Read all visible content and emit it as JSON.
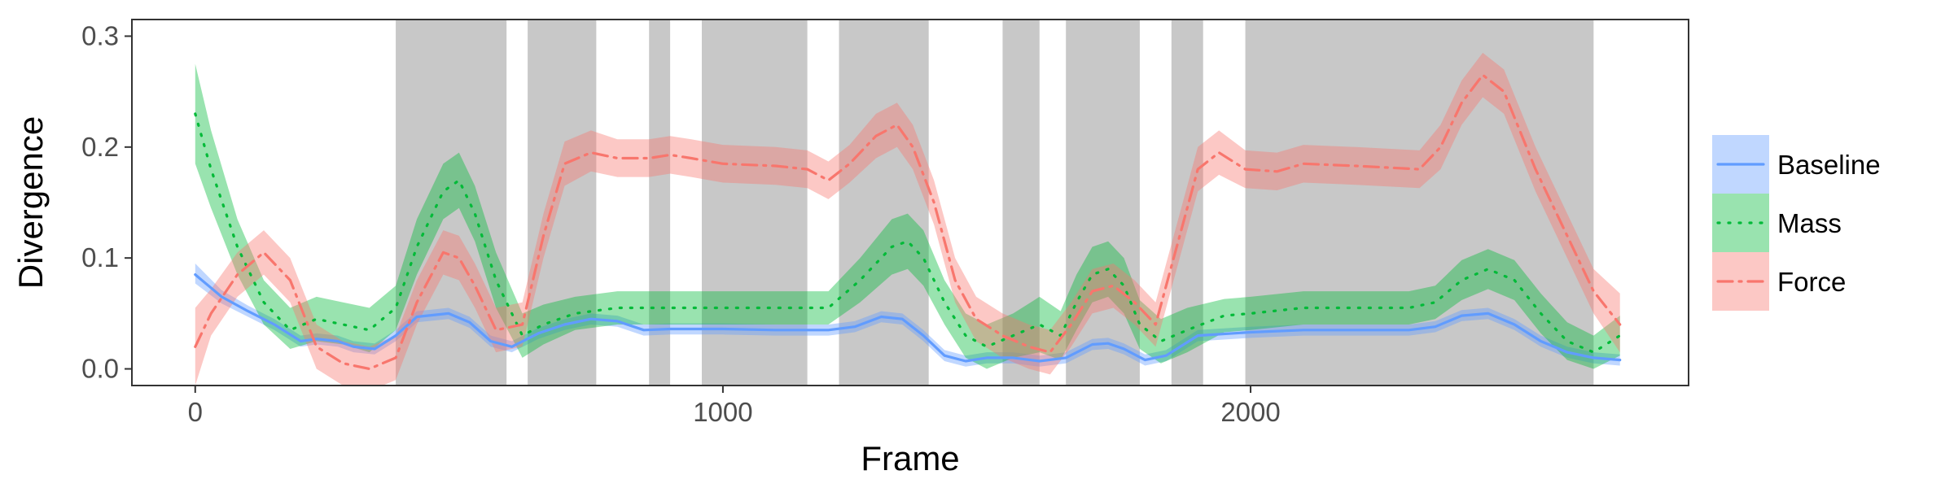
{
  "chart_data": {
    "type": "line",
    "title": "",
    "xlabel": "Frame",
    "ylabel": "Divergence",
    "xlim": [
      -120,
      2830
    ],
    "ylim": [
      -0.015,
      0.315
    ],
    "x_ticks": [
      0,
      1000,
      2000
    ],
    "x_tick_labels": [
      "0",
      "1000",
      "2000"
    ],
    "y_ticks": [
      0.0,
      0.1,
      0.2,
      0.3
    ],
    "y_tick_labels": [
      "0.0",
      "0.1",
      "0.2",
      "0.3"
    ],
    "grid": false,
    "panel_border": true,
    "legend_position": "right",
    "shaded_regions": [
      [
        380,
        590
      ],
      [
        630,
        760
      ],
      [
        860,
        900
      ],
      [
        960,
        1160
      ],
      [
        1220,
        1390
      ],
      [
        1530,
        1600
      ],
      [
        1650,
        1790
      ],
      [
        1850,
        1910
      ],
      [
        1990,
        2650
      ]
    ],
    "shaded_color": "#c8c8c8",
    "series": [
      {
        "name": "Baseline",
        "color": "#619cff",
        "band_color": "#619cff",
        "line_style": "solid",
        "x": [
          0,
          50,
          100,
          150,
          200,
          230,
          270,
          300,
          340,
          380,
          420,
          480,
          520,
          560,
          600,
          650,
          700,
          750,
          800,
          850,
          900,
          1000,
          1100,
          1200,
          1250,
          1300,
          1340,
          1380,
          1420,
          1460,
          1500,
          1550,
          1600,
          1650,
          1700,
          1730,
          1760,
          1800,
          1840,
          1900,
          2000,
          2100,
          2200,
          2300,
          2350,
          2400,
          2450,
          2500,
          2550,
          2600,
          2650,
          2700
        ],
        "y": [
          0.085,
          0.065,
          0.052,
          0.04,
          0.025,
          0.027,
          0.025,
          0.02,
          0.018,
          0.03,
          0.047,
          0.05,
          0.042,
          0.025,
          0.02,
          0.032,
          0.04,
          0.045,
          0.043,
          0.035,
          0.036,
          0.036,
          0.035,
          0.035,
          0.038,
          0.047,
          0.045,
          0.03,
          0.012,
          0.007,
          0.01,
          0.01,
          0.007,
          0.01,
          0.022,
          0.023,
          0.018,
          0.008,
          0.012,
          0.03,
          0.033,
          0.035,
          0.035,
          0.035,
          0.038,
          0.048,
          0.05,
          0.04,
          0.025,
          0.015,
          0.01,
          0.008
        ],
        "lower": [
          0.077,
          0.059,
          0.047,
          0.035,
          0.02,
          0.022,
          0.02,
          0.015,
          0.013,
          0.025,
          0.042,
          0.045,
          0.037,
          0.02,
          0.015,
          0.027,
          0.035,
          0.04,
          0.038,
          0.03,
          0.031,
          0.031,
          0.03,
          0.03,
          0.033,
          0.042,
          0.04,
          0.025,
          0.007,
          0.002,
          0.005,
          0.005,
          0.002,
          0.005,
          0.017,
          0.018,
          0.013,
          0.003,
          0.007,
          0.025,
          0.028,
          0.03,
          0.03,
          0.03,
          0.033,
          0.043,
          0.045,
          0.035,
          0.02,
          0.01,
          0.005,
          0.003
        ],
        "upper": [
          0.095,
          0.071,
          0.057,
          0.045,
          0.03,
          0.032,
          0.03,
          0.025,
          0.023,
          0.035,
          0.052,
          0.055,
          0.047,
          0.03,
          0.025,
          0.037,
          0.045,
          0.05,
          0.048,
          0.04,
          0.041,
          0.041,
          0.04,
          0.04,
          0.043,
          0.052,
          0.05,
          0.035,
          0.017,
          0.012,
          0.015,
          0.015,
          0.012,
          0.015,
          0.027,
          0.028,
          0.023,
          0.013,
          0.017,
          0.035,
          0.038,
          0.04,
          0.04,
          0.04,
          0.043,
          0.053,
          0.055,
          0.045,
          0.03,
          0.02,
          0.015,
          0.013
        ]
      },
      {
        "name": "Mass",
        "color": "#00ba38",
        "band_color": "#00ba38",
        "line_style": "dotted",
        "x": [
          0,
          30,
          80,
          130,
          180,
          230,
          280,
          330,
          380,
          420,
          470,
          500,
          530,
          570,
          620,
          660,
          720,
          800,
          900,
          1000,
          1100,
          1200,
          1260,
          1320,
          1350,
          1380,
          1420,
          1460,
          1500,
          1550,
          1600,
          1640,
          1670,
          1700,
          1730,
          1760,
          1790,
          1830,
          1880,
          1950,
          2000,
          2100,
          2200,
          2300,
          2350,
          2400,
          2450,
          2500,
          2550,
          2600,
          2650,
          2700
        ],
        "y": [
          0.23,
          0.18,
          0.11,
          0.06,
          0.035,
          0.045,
          0.04,
          0.035,
          0.055,
          0.11,
          0.16,
          0.17,
          0.14,
          0.08,
          0.03,
          0.04,
          0.05,
          0.055,
          0.055,
          0.055,
          0.055,
          0.055,
          0.08,
          0.11,
          0.115,
          0.1,
          0.06,
          0.03,
          0.02,
          0.03,
          0.04,
          0.03,
          0.06,
          0.085,
          0.09,
          0.075,
          0.04,
          0.025,
          0.035,
          0.048,
          0.05,
          0.055,
          0.055,
          0.055,
          0.06,
          0.08,
          0.09,
          0.08,
          0.05,
          0.025,
          0.015,
          0.03
        ],
        "lower": [
          0.185,
          0.145,
          0.085,
          0.04,
          0.018,
          0.025,
          0.022,
          0.015,
          0.035,
          0.085,
          0.135,
          0.145,
          0.115,
          0.055,
          0.01,
          0.022,
          0.035,
          0.04,
          0.04,
          0.04,
          0.04,
          0.04,
          0.06,
          0.085,
          0.09,
          0.075,
          0.04,
          0.01,
          0.0,
          0.01,
          0.015,
          0.008,
          0.035,
          0.06,
          0.065,
          0.05,
          0.018,
          0.005,
          0.015,
          0.033,
          0.035,
          0.04,
          0.04,
          0.04,
          0.045,
          0.062,
          0.072,
          0.062,
          0.032,
          0.008,
          0.0,
          0.012
        ],
        "upper": [
          0.275,
          0.215,
          0.135,
          0.08,
          0.055,
          0.065,
          0.06,
          0.055,
          0.075,
          0.135,
          0.185,
          0.195,
          0.165,
          0.105,
          0.05,
          0.058,
          0.065,
          0.07,
          0.07,
          0.07,
          0.07,
          0.07,
          0.1,
          0.135,
          0.14,
          0.125,
          0.08,
          0.05,
          0.04,
          0.05,
          0.065,
          0.052,
          0.085,
          0.11,
          0.115,
          0.1,
          0.062,
          0.045,
          0.055,
          0.063,
          0.065,
          0.07,
          0.07,
          0.07,
          0.075,
          0.098,
          0.108,
          0.098,
          0.068,
          0.042,
          0.03,
          0.048
        ]
      },
      {
        "name": "Force",
        "color": "#f8766d",
        "band_color": "#f8766d",
        "line_style": "dashdot",
        "x": [
          0,
          30,
          80,
          130,
          180,
          230,
          280,
          330,
          380,
          420,
          470,
          500,
          530,
          570,
          620,
          660,
          700,
          750,
          800,
          860,
          900,
          940,
          1000,
          1100,
          1160,
          1200,
          1240,
          1290,
          1330,
          1360,
          1400,
          1440,
          1480,
          1530,
          1580,
          1620,
          1660,
          1700,
          1740,
          1780,
          1820,
          1860,
          1900,
          1940,
          1990,
          2050,
          2100,
          2200,
          2320,
          2360,
          2400,
          2440,
          2480,
          2540,
          2600,
          2650,
          2700
        ],
        "y": [
          0.02,
          0.05,
          0.085,
          0.105,
          0.08,
          0.02,
          0.005,
          0.0,
          0.01,
          0.06,
          0.105,
          0.1,
          0.075,
          0.035,
          0.04,
          0.12,
          0.185,
          0.195,
          0.19,
          0.19,
          0.193,
          0.19,
          0.185,
          0.183,
          0.18,
          0.17,
          0.185,
          0.21,
          0.22,
          0.2,
          0.15,
          0.08,
          0.045,
          0.03,
          0.02,
          0.015,
          0.04,
          0.07,
          0.075,
          0.06,
          0.04,
          0.11,
          0.18,
          0.195,
          0.18,
          0.178,
          0.185,
          0.183,
          0.18,
          0.2,
          0.24,
          0.265,
          0.25,
          0.18,
          0.12,
          0.07,
          0.04
        ],
        "lower": [
          -0.015,
          0.03,
          0.065,
          0.085,
          0.06,
          0.0,
          -0.015,
          -0.02,
          -0.01,
          0.04,
          0.085,
          0.08,
          0.055,
          0.015,
          0.02,
          0.1,
          0.165,
          0.178,
          0.173,
          0.173,
          0.176,
          0.173,
          0.168,
          0.166,
          0.163,
          0.153,
          0.168,
          0.19,
          0.2,
          0.18,
          0.13,
          0.06,
          0.025,
          0.01,
          0.0,
          -0.005,
          0.02,
          0.05,
          0.055,
          0.04,
          0.02,
          0.09,
          0.16,
          0.175,
          0.163,
          0.161,
          0.168,
          0.166,
          0.163,
          0.18,
          0.22,
          0.245,
          0.23,
          0.16,
          0.1,
          0.05,
          0.015
        ],
        "upper": [
          0.055,
          0.072,
          0.105,
          0.125,
          0.1,
          0.04,
          0.025,
          0.02,
          0.03,
          0.08,
          0.125,
          0.12,
          0.095,
          0.055,
          0.06,
          0.14,
          0.205,
          0.215,
          0.207,
          0.207,
          0.21,
          0.207,
          0.202,
          0.2,
          0.197,
          0.187,
          0.202,
          0.23,
          0.24,
          0.22,
          0.17,
          0.1,
          0.065,
          0.05,
          0.04,
          0.035,
          0.06,
          0.09,
          0.095,
          0.08,
          0.06,
          0.13,
          0.2,
          0.215,
          0.197,
          0.195,
          0.202,
          0.2,
          0.197,
          0.22,
          0.26,
          0.285,
          0.27,
          0.2,
          0.14,
          0.09,
          0.068
        ]
      }
    ]
  }
}
